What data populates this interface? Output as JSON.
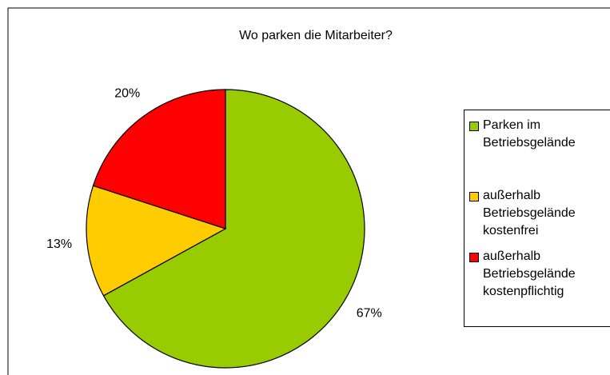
{
  "chart_data": {
    "type": "pie",
    "title": "Wo parken die Mitarbeiter?",
    "categories": [
      "Parken im Betriebsgelände",
      "außerhalb Betriebsgelände kostenfrei",
      "außerhalb Betriebsgelände kostenpflichtig"
    ],
    "values": [
      67,
      13,
      20
    ],
    "value_labels": [
      "67%",
      "13%",
      "20%"
    ],
    "colors": [
      "#99cc00",
      "#ffcc00",
      "#ff0000"
    ],
    "legend": "right"
  }
}
